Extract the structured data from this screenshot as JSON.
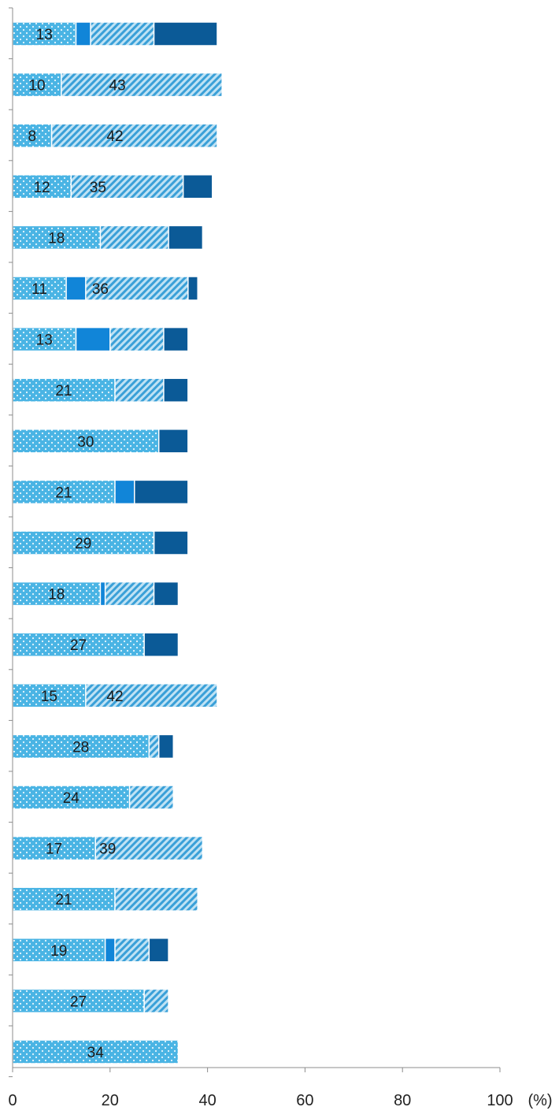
{
  "chart_data": {
    "type": "bar",
    "orientation": "horizontal",
    "stacked": true,
    "unit_label": "(%)",
    "xlim": [
      0,
      100
    ],
    "x_ticks": [
      0,
      20,
      40,
      60,
      80,
      100
    ],
    "x_tick_labels": [
      "0",
      "20",
      "40",
      "60",
      "80",
      "100"
    ],
    "rows": [
      [
        42,
        29,
        16,
        13
      ],
      [
        42,
        43,
        5,
        10
      ],
      [
        42,
        42,
        8,
        8
      ],
      [
        41,
        35,
        12,
        12
      ],
      [
        39,
        32,
        11,
        18
      ],
      [
        38,
        36,
        15,
        11
      ],
      [
        36,
        31,
        20,
        13
      ],
      [
        36,
        31,
        12,
        21
      ],
      [
        36,
        17,
        17,
        30
      ],
      [
        36,
        18,
        25,
        21
      ],
      [
        36,
        29,
        6,
        29
      ],
      [
        34,
        29,
        19,
        18
      ],
      [
        34,
        25,
        14,
        27
      ],
      [
        33,
        42,
        10,
        15
      ],
      [
        33,
        30,
        9,
        28
      ],
      [
        33,
        33,
        10,
        24
      ],
      [
        33,
        39,
        11,
        17
      ],
      [
        33,
        38,
        8,
        21
      ],
      [
        32,
        28,
        21,
        19
      ],
      [
        32,
        32,
        9,
        27
      ],
      [
        31,
        19,
        16,
        34
      ]
    ],
    "series_styles": [
      {
        "fill": "#0b5a97",
        "pattern": "solid",
        "label_color": "#ffffff"
      },
      {
        "fill": "#3aa0d8",
        "pattern": "diagonal-stripes",
        "label_color": "#1a1a1a"
      },
      {
        "fill": "#1185d8",
        "pattern": "solid",
        "label_color": "#ffffff"
      },
      {
        "fill": "#4ab4e4",
        "pattern": "dots",
        "label_color": "#1a1a1a"
      }
    ],
    "grid": false
  }
}
